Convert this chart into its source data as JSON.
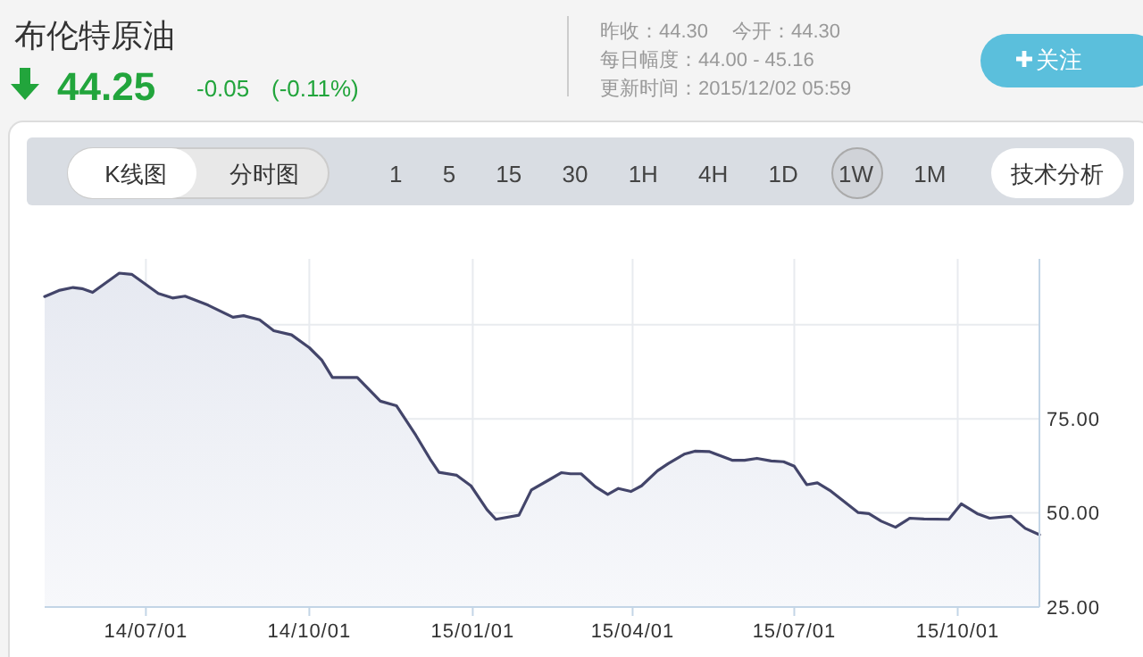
{
  "chart_data": {
    "type": "area",
    "title": "布伦特原油",
    "annotations": [
      "44.25",
      "-0.05",
      "(-0.11%)",
      "昨收：44.30",
      "今开：44.30",
      "每日幅度：44.00 - 45.16",
      "更新时间：2015/12/02 05:59",
      "关注",
      "K线图",
      "分时图",
      "1 5 15 30 1H 4H 1D 1W 1M",
      "技术分析"
    ],
    "x": [
      "2014-05-05",
      "2014-05-13",
      "2014-05-21",
      "2014-05-26",
      "2014-06-01",
      "2014-06-16",
      "2014-06-23",
      "2014-07-08",
      "2014-07-16",
      "2014-07-23",
      "2014-08-05",
      "2014-08-19",
      "2014-08-25",
      "2014-09-03",
      "2014-09-11",
      "2014-09-21",
      "2014-10-01",
      "2014-10-08",
      "2014-10-14",
      "2014-10-28",
      "2014-11-10",
      "2014-11-19",
      "2014-11-30",
      "2014-12-08",
      "2014-12-13",
      "2014-12-23",
      "2014-12-31",
      "2015-01-09",
      "2015-01-14",
      "2015-01-27",
      "2015-02-03",
      "2015-02-13",
      "2015-02-20",
      "2015-02-25",
      "2015-03-03",
      "2015-03-11",
      "2015-03-18",
      "2015-03-24",
      "2015-03-31",
      "2015-04-06",
      "2015-04-15",
      "2015-04-21",
      "2015-04-30",
      "2015-05-06",
      "2015-05-14",
      "2015-05-21",
      "2015-05-27",
      "2015-06-03",
      "2015-06-10",
      "2015-06-18",
      "2015-06-25",
      "2015-07-01",
      "2015-07-08",
      "2015-07-14",
      "2015-07-21",
      "2015-08-06",
      "2015-08-12",
      "2015-08-19",
      "2015-08-27",
      "2015-09-04",
      "2015-09-12",
      "2015-09-26",
      "2015-10-03",
      "2015-10-12",
      "2015-10-19",
      "2015-10-31",
      "2015-11-08",
      "2015-11-16"
    ],
    "series": [
      {
        "color": "#43456a",
        "values": [
          107.5,
          109.1,
          109.9,
          109.6,
          108.6,
          113.7,
          113.4,
          108.3,
          107.1,
          107.6,
          105.2,
          102.0,
          102.4,
          101.3,
          98.4,
          97.3,
          93.9,
          90.6,
          86.0,
          86.0,
          79.7,
          78.5,
          70.6,
          64.3,
          60.8,
          60.0,
          57.2,
          50.9,
          48.3,
          49.4,
          56.1,
          58.8,
          60.7,
          60.4,
          60.4,
          57.0,
          54.9,
          56.5,
          55.7,
          57.2,
          61.2,
          63.1,
          65.6,
          66.4,
          66.3,
          65.1,
          64.0,
          64.0,
          64.5,
          63.8,
          63.6,
          62.4,
          57.5,
          58.0,
          56.0,
          50.1,
          49.8,
          47.8,
          46.2,
          48.6,
          48.4,
          48.3,
          52.4,
          49.8,
          48.6,
          49.1,
          45.9,
          44.2
        ]
      }
    ],
    "xlim": [
      "2014-05-05",
      "2015-11-16"
    ],
    "xticks": [
      {
        "value": "2014-07-01",
        "label": "14/07/01"
      },
      {
        "value": "2014-10-01",
        "label": "14/10/01"
      },
      {
        "value": "2015-01-01",
        "label": "15/01/01"
      },
      {
        "value": "2015-04-01",
        "label": "15/04/01"
      },
      {
        "value": "2015-07-01",
        "label": "15/07/01"
      },
      {
        "value": "2015-10-01",
        "label": "15/10/01"
      }
    ],
    "ylim": [
      25,
      117.5
    ],
    "yticks": [
      {
        "value": 25,
        "label": "25.00"
      },
      {
        "value": 50,
        "label": "50.00"
      },
      {
        "value": 75,
        "label": "75.00"
      },
      {
        "value": 100,
        "label": null
      }
    ],
    "grid": true
  }
}
